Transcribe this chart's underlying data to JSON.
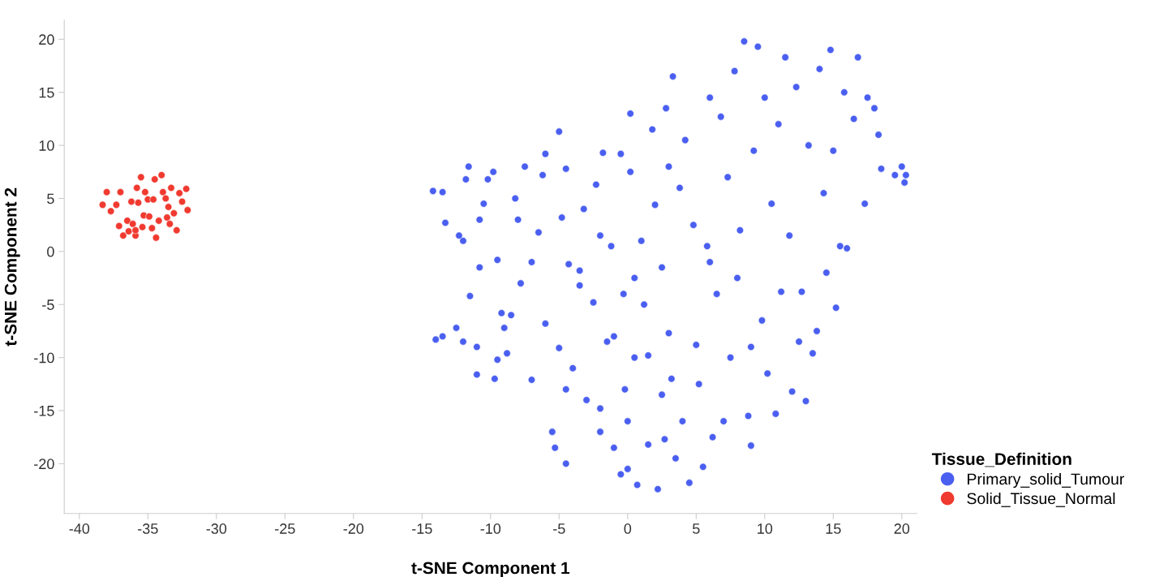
{
  "chart_data": {
    "type": "scatter",
    "xlabel": "t-SNE Component 1",
    "ylabel": "t-SNE Component 2",
    "legend_title": "Tissue_Definition",
    "legend": "bottom right",
    "grid": false,
    "marker": "circle",
    "xlim": [
      -41.1,
      21.1
    ],
    "ylim": [
      -24.7,
      21.8
    ],
    "xticks": [
      -40,
      -35,
      -30,
      -25,
      -20,
      -15,
      -10,
      -5,
      0,
      5,
      10,
      15,
      20
    ],
    "yticks": [
      -20,
      -15,
      -10,
      -5,
      0,
      5,
      10,
      15,
      20
    ],
    "series": [
      {
        "name": "Primary_solid_Tumour",
        "color": "#4a5ff0",
        "x": [
          -14.2,
          -13.5,
          -13.3,
          -12.3,
          -12.0,
          -11.8,
          -11.6,
          -14.0,
          -13.5,
          -12.5,
          -12.0,
          -11.0,
          -11.0,
          -11.5,
          -10.8,
          -10.5,
          -10.8,
          -10.2,
          -9.8,
          -9.5,
          -9.2,
          -9.0,
          -8.8,
          -9.5,
          -9.7,
          -8.5,
          -8.2,
          -8.0,
          -7.8,
          -7.5,
          -7.0,
          -7.0,
          -6.5,
          -6.2,
          -6.0,
          -6.0,
          -5.5,
          -5.3,
          -5.0,
          -5.0,
          -4.8,
          -4.5,
          -4.3,
          -4.0,
          -4.5,
          -4.5,
          -3.5,
          -3.2,
          -3.0,
          -3.5,
          -2.5,
          -2.3,
          -2.0,
          -2.0,
          -1.8,
          -1.5,
          -1.0,
          -1.2,
          -0.5,
          -0.3,
          -0.2,
          0.0,
          -0.5,
          0.2,
          0.0,
          0.2,
          0.5,
          0.7,
          1.0,
          1.2,
          1.5,
          1.5,
          1.8,
          2.0,
          2.2,
          2.5,
          2.7,
          2.8,
          3.0,
          3.2,
          3.3,
          3.5,
          3.8,
          4.0,
          4.2,
          4.5,
          4.8,
          5.0,
          5.2,
          5.5,
          5.8,
          6.0,
          6.2,
          6.5,
          6.8,
          7.0,
          7.3,
          7.5,
          7.8,
          8.0,
          8.2,
          8.5,
          8.8,
          9.0,
          9.2,
          9.5,
          9.8,
          10.0,
          10.2,
          10.5,
          10.8,
          11.0,
          11.2,
          11.5,
          11.8,
          12.0,
          12.3,
          12.7,
          13.0,
          13.2,
          13.5,
          13.8,
          14.0,
          14.3,
          14.5,
          14.8,
          15.0,
          15.2,
          15.5,
          15.8,
          16.0,
          16.5,
          16.8,
          17.5,
          17.3,
          18.0,
          18.3,
          18.5,
          19.5,
          20.0,
          20.2,
          20.3,
          12.5,
          2.5,
          -2.0,
          6.0,
          9.0,
          -1.0,
          3.0,
          0.5
        ],
        "values": [
          5.7,
          5.6,
          2.7,
          1.5,
          1.0,
          6.8,
          8.0,
          -8.3,
          -8.0,
          -7.2,
          -8.5,
          -11.6,
          -9.0,
          -4.2,
          -1.5,
          4.5,
          3.0,
          6.8,
          7.5,
          -0.8,
          -5.8,
          -7.2,
          -9.6,
          -10.2,
          -12.0,
          -6.0,
          5.0,
          3.0,
          -3.0,
          8.0,
          -12.1,
          -1.0,
          1.8,
          7.2,
          -6.8,
          9.2,
          -17.0,
          -18.5,
          11.3,
          -9.1,
          3.2,
          7.8,
          -1.2,
          -11.0,
          -13.0,
          -20.0,
          -1.8,
          4.0,
          -14.0,
          -3.2,
          -4.8,
          6.3,
          -17.0,
          -14.8,
          9.3,
          -8.5,
          -18.5,
          0.5,
          -21.0,
          -4.0,
          -13.0,
          -16.0,
          9.2,
          7.5,
          -20.5,
          13.0,
          -10.0,
          -22.0,
          1.0,
          -5.0,
          -18.2,
          -9.8,
          11.5,
          4.4,
          -22.4,
          -1.5,
          -17.7,
          13.5,
          -7.7,
          -12.0,
          16.5,
          -19.5,
          6.0,
          -16.0,
          10.5,
          -21.8,
          2.5,
          -8.8,
          -12.5,
          -20.3,
          0.5,
          14.5,
          -17.5,
          -4.0,
          12.7,
          -16.0,
          7.0,
          -10.0,
          17.0,
          -2.5,
          2.0,
          19.8,
          -15.5,
          -18.3,
          9.5,
          19.3,
          -6.5,
          14.5,
          -11.5,
          4.5,
          -15.3,
          12.0,
          -3.8,
          18.3,
          1.5,
          -13.2,
          15.5,
          -3.8,
          -14.1,
          10.0,
          -9.6,
          -7.5,
          17.2,
          5.5,
          -2.0,
          19.0,
          9.5,
          -5.3,
          0.5,
          15.0,
          0.3,
          12.5,
          18.3,
          14.5,
          4.5,
          13.5,
          11.0,
          7.8,
          7.2,
          8.0,
          6.5,
          7.2,
          -8.5,
          -13.5,
          1.5,
          -1.0,
          -9.0,
          -8.0,
          8.0,
          -2.5
        ]
      },
      {
        "name": "Solid_Tissue_Normal",
        "color": "#f03a30",
        "x": [
          -38.3,
          -38.0,
          -37.7,
          -37.3,
          -37.0,
          -37.1,
          -36.8,
          -36.5,
          -36.4,
          -36.2,
          -36.1,
          -35.9,
          -35.8,
          -35.7,
          -35.4,
          -35.3,
          -35.2,
          -35.0,
          -34.9,
          -34.7,
          -34.6,
          -34.5,
          -34.4,
          -34.2,
          -34.0,
          -33.9,
          -33.7,
          -33.6,
          -33.4,
          -33.3,
          -33.1,
          -32.9,
          -32.7,
          -32.5,
          -32.2,
          -32.1,
          -35.9,
          -35.5,
          -33.5
        ],
        "values": [
          4.4,
          5.6,
          3.8,
          4.4,
          5.6,
          2.4,
          1.5,
          2.9,
          1.9,
          4.7,
          2.6,
          1.5,
          6.0,
          4.6,
          2.3,
          3.4,
          5.6,
          4.9,
          3.3,
          2.2,
          4.9,
          6.8,
          1.3,
          2.9,
          7.2,
          5.6,
          5.0,
          3.2,
          2.6,
          6.0,
          3.6,
          2.0,
          5.5,
          4.7,
          5.9,
          3.9,
          2.0,
          7.0,
          4.2
        ]
      }
    ]
  }
}
